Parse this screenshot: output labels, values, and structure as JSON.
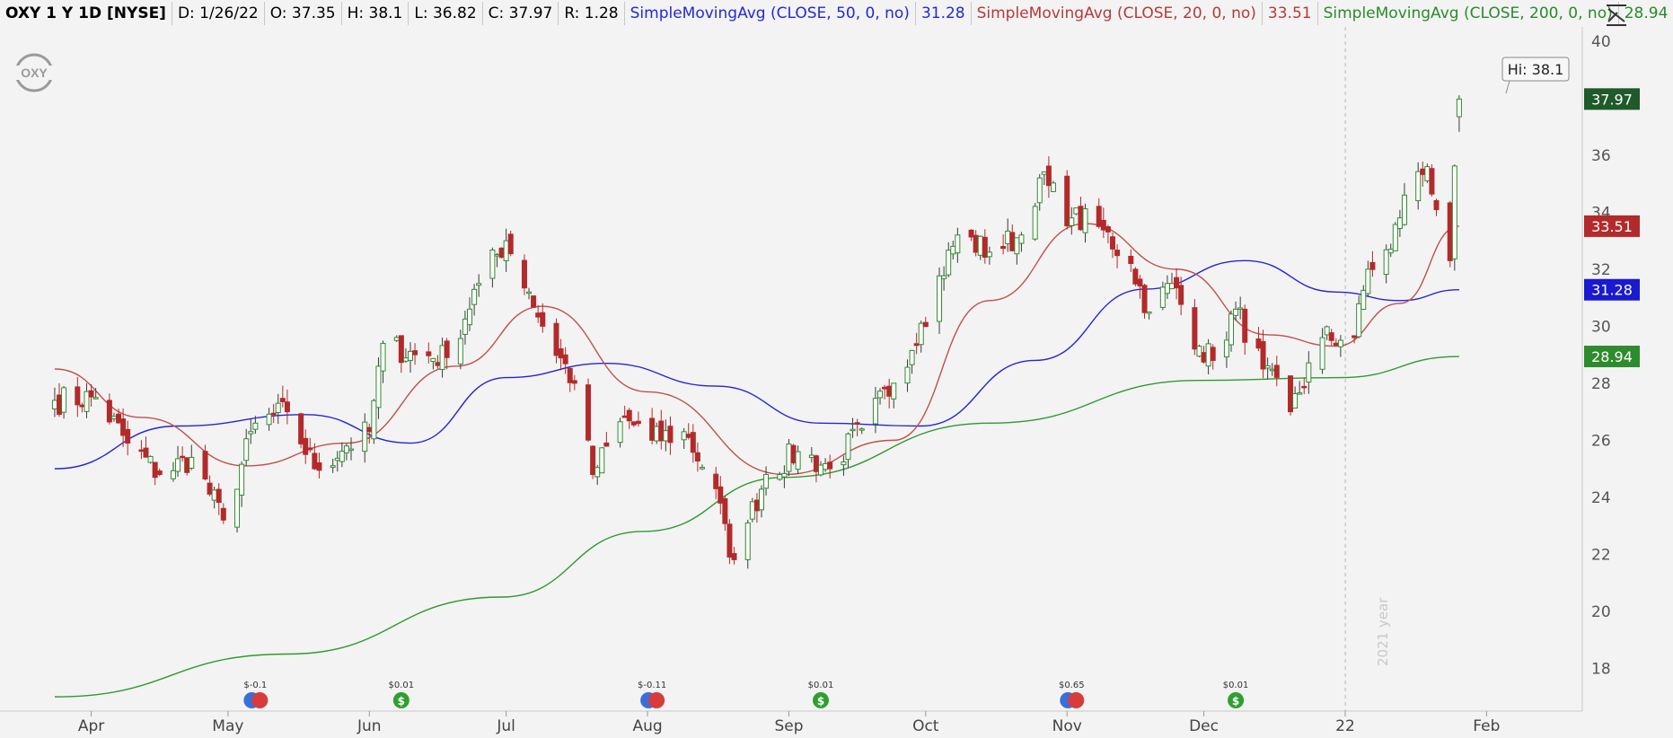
{
  "header": {
    "symbol": "OXY 1 Y 1D [NYSE]",
    "date": "D: 1/26/22",
    "open": "O: 37.35",
    "high": "H: 38.1",
    "low": "L: 36.82",
    "close": "C: 37.97",
    "range": "R: 1.28",
    "sma50_label": "SimpleMovingAvg (CLOSE, 50, 0, no)",
    "sma50_value": "31.28",
    "sma20_label": "SimpleMovingAvg (CLOSE, 20, 0, no)",
    "sma20_value": "33.51",
    "sma200_label": "SimpleMovingAvg (CLOSE, 200, 0, no)",
    "sma200_value": "28.94"
  },
  "logo_text": "OXY",
  "hi_callout": "Hi: 38.1",
  "year_label": "2021 year",
  "colors": {
    "up": "#2e8b2e",
    "down": "#b22a2a",
    "sma50": "#2424d8",
    "sma20": "#c0504d",
    "sma200": "#2e9a2e",
    "close_tag": "#1f5a2a"
  },
  "chart_data": {
    "type": "candlestick",
    "ylim": [
      16.5,
      40.5
    ],
    "y_ticks": [
      18,
      20,
      22,
      24,
      26,
      28,
      30,
      32,
      34,
      36,
      40
    ],
    "x_labels": [
      "Apr",
      "May",
      "Jun",
      "Jul",
      "Aug",
      "Sep",
      "Oct",
      "Nov",
      "Dec",
      "22",
      "Feb"
    ],
    "price_tags": [
      {
        "name": "close",
        "value": 37.97,
        "text": "37.97"
      },
      {
        "name": "sma20",
        "value": 33.51,
        "text": "33.51"
      },
      {
        "name": "sma50",
        "value": 31.28,
        "text": "31.28"
      },
      {
        "name": "sma200",
        "value": 28.94,
        "text": "28.94"
      }
    ],
    "anchors": [
      {
        "date": "2021-03-24",
        "close": 27.4
      },
      {
        "date": "2021-04-02",
        "close": 27.5
      },
      {
        "date": "2021-04-09",
        "close": 25.9
      },
      {
        "date": "2021-04-16",
        "close": 24.8
      },
      {
        "date": "2021-04-23",
        "close": 25.4
      },
      {
        "date": "2021-04-30",
        "close": 23.2
      },
      {
        "date": "2021-05-07",
        "close": 26.6
      },
      {
        "date": "2021-05-14",
        "close": 27.0
      },
      {
        "date": "2021-05-20",
        "close": 25.0
      },
      {
        "date": "2021-05-27",
        "close": 25.8
      },
      {
        "date": "2021-06-01",
        "close": 26.3
      },
      {
        "date": "2021-06-04",
        "close": 29.4
      },
      {
        "date": "2021-06-11",
        "close": 29.0
      },
      {
        "date": "2021-06-18",
        "close": 28.9
      },
      {
        "date": "2021-06-25",
        "close": 31.5
      },
      {
        "date": "2021-07-01",
        "close": 33.0
      },
      {
        "date": "2021-07-06",
        "close": 31.2
      },
      {
        "date": "2021-07-09",
        "close": 30.0
      },
      {
        "date": "2021-07-16",
        "close": 28.0
      },
      {
        "date": "2021-07-20",
        "close": 24.8
      },
      {
        "date": "2021-07-27",
        "close": 26.8
      },
      {
        "date": "2021-08-02",
        "close": 26.0
      },
      {
        "date": "2021-08-09",
        "close": 26.3
      },
      {
        "date": "2021-08-16",
        "close": 24.3
      },
      {
        "date": "2021-08-19",
        "close": 21.9
      },
      {
        "date": "2021-08-23",
        "close": 23.1
      },
      {
        "date": "2021-08-27",
        "close": 24.8
      },
      {
        "date": "2021-09-03",
        "close": 25.6
      },
      {
        "date": "2021-09-10",
        "close": 25.0
      },
      {
        "date": "2021-09-17",
        "close": 26.4
      },
      {
        "date": "2021-09-24",
        "close": 28.0
      },
      {
        "date": "2021-09-30",
        "close": 30.1
      },
      {
        "date": "2021-10-08",
        "close": 33.2
      },
      {
        "date": "2021-10-15",
        "close": 32.6
      },
      {
        "date": "2021-10-22",
        "close": 33.2
      },
      {
        "date": "2021-10-26",
        "close": 35.2
      },
      {
        "date": "2021-11-02",
        "close": 33.8
      },
      {
        "date": "2021-11-08",
        "close": 33.5
      },
      {
        "date": "2021-11-15",
        "close": 32.2
      },
      {
        "date": "2021-11-19",
        "close": 30.5
      },
      {
        "date": "2021-11-24",
        "close": 31.5
      },
      {
        "date": "2021-11-30",
        "close": 29.3
      },
      {
        "date": "2021-12-03",
        "close": 28.8
      },
      {
        "date": "2021-12-08",
        "close": 30.6
      },
      {
        "date": "2021-12-14",
        "close": 28.5
      },
      {
        "date": "2021-12-20",
        "close": 27.0
      },
      {
        "date": "2021-12-27",
        "close": 29.6
      },
      {
        "date": "2022-01-03",
        "close": 29.6
      },
      {
        "date": "2022-01-06",
        "close": 32.0
      },
      {
        "date": "2022-01-11",
        "close": 32.7
      },
      {
        "date": "2022-01-14",
        "close": 34.6
      },
      {
        "date": "2022-01-19",
        "close": 35.6
      },
      {
        "date": "2022-01-24",
        "close": 32.3
      },
      {
        "date": "2022-01-26",
        "close": 37.97
      }
    ],
    "sma20": [
      {
        "date": "2021-03-24",
        "value": 28.5
      },
      {
        "date": "2021-04-12",
        "value": 26.8
      },
      {
        "date": "2021-05-05",
        "value": 25.1
      },
      {
        "date": "2021-05-27",
        "value": 25.9
      },
      {
        "date": "2021-06-20",
        "value": 28.6
      },
      {
        "date": "2021-07-09",
        "value": 30.7
      },
      {
        "date": "2021-08-01",
        "value": 27.7
      },
      {
        "date": "2021-08-31",
        "value": 24.8
      },
      {
        "date": "2021-09-24",
        "value": 26.0
      },
      {
        "date": "2021-10-15",
        "value": 30.9
      },
      {
        "date": "2021-11-05",
        "value": 33.6
      },
      {
        "date": "2021-11-25",
        "value": 32.0
      },
      {
        "date": "2021-12-15",
        "value": 29.7
      },
      {
        "date": "2021-12-30",
        "value": 29.3
      },
      {
        "date": "2022-01-13",
        "value": 30.8
      },
      {
        "date": "2022-01-26",
        "value": 33.51
      }
    ],
    "sma50": [
      {
        "date": "2021-03-24",
        "value": 25.0
      },
      {
        "date": "2021-04-20",
        "value": 26.5
      },
      {
        "date": "2021-05-18",
        "value": 26.9
      },
      {
        "date": "2021-06-10",
        "value": 25.9
      },
      {
        "date": "2021-07-01",
        "value": 28.2
      },
      {
        "date": "2021-07-23",
        "value": 28.7
      },
      {
        "date": "2021-08-16",
        "value": 27.9
      },
      {
        "date": "2021-09-08",
        "value": 26.6
      },
      {
        "date": "2021-09-30",
        "value": 26.5
      },
      {
        "date": "2021-10-25",
        "value": 28.8
      },
      {
        "date": "2021-11-18",
        "value": 31.3
      },
      {
        "date": "2021-12-10",
        "value": 32.3
      },
      {
        "date": "2021-12-30",
        "value": 31.2
      },
      {
        "date": "2022-01-13",
        "value": 30.9
      },
      {
        "date": "2022-01-26",
        "value": 31.28
      }
    ],
    "sma200": [
      {
        "date": "2021-03-24",
        "value": 17.0
      },
      {
        "date": "2021-05-14",
        "value": 18.5
      },
      {
        "date": "2021-06-30",
        "value": 20.5
      },
      {
        "date": "2021-07-31",
        "value": 22.8
      },
      {
        "date": "2021-08-31",
        "value": 24.7
      },
      {
        "date": "2021-10-15",
        "value": 26.6
      },
      {
        "date": "2021-11-30",
        "value": 28.1
      },
      {
        "date": "2021-12-31",
        "value": 28.2
      },
      {
        "date": "2022-01-26",
        "value": 28.94
      }
    ],
    "dividends": [
      {
        "date": "2021-05-07",
        "text": "$-0.1",
        "kind": "earn-div"
      },
      {
        "date": "2021-06-08",
        "text": "$0.01",
        "kind": "div"
      },
      {
        "date": "2021-08-02",
        "text": "$-0.11",
        "kind": "earn-div"
      },
      {
        "date": "2021-09-08",
        "text": "$0.01",
        "kind": "div"
      },
      {
        "date": "2021-11-02",
        "text": "$0.65",
        "kind": "earn-div"
      },
      {
        "date": "2021-12-08",
        "text": "$0.01",
        "kind": "div"
      }
    ]
  }
}
